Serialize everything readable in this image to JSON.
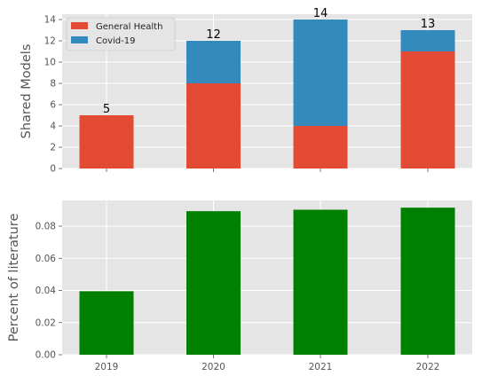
{
  "chart_data": [
    {
      "type": "bar",
      "stacked": true,
      "categories": [
        "2019",
        "2020",
        "2021",
        "2022"
      ],
      "series": [
        {
          "name": "General Health",
          "color": "#E24A33",
          "values": [
            5,
            8,
            4,
            11
          ]
        },
        {
          "name": "Covid-19",
          "color": "#348ABD",
          "values": [
            0,
            4,
            10,
            2
          ]
        }
      ],
      "totals": [
        "5",
        "12",
        "14",
        "13"
      ],
      "ylabel": "Shared Models",
      "ylim": [
        0,
        14.5
      ],
      "yticks": [
        "0",
        "2",
        "4",
        "6",
        "8",
        "10",
        "12",
        "14"
      ],
      "grid": true,
      "legend": "top-left"
    },
    {
      "type": "bar",
      "categories": [
        "2019",
        "2020",
        "2021",
        "2022"
      ],
      "series": [
        {
          "color": "#008000",
          "values": [
            0.0395,
            0.0893,
            0.0902,
            0.0915
          ]
        }
      ],
      "ylabel": "Percent of literature",
      "ylim": [
        0,
        0.096
      ],
      "yticks": [
        "0.00",
        "0.02",
        "0.04",
        "0.06",
        "0.08"
      ],
      "grid": true
    }
  ]
}
